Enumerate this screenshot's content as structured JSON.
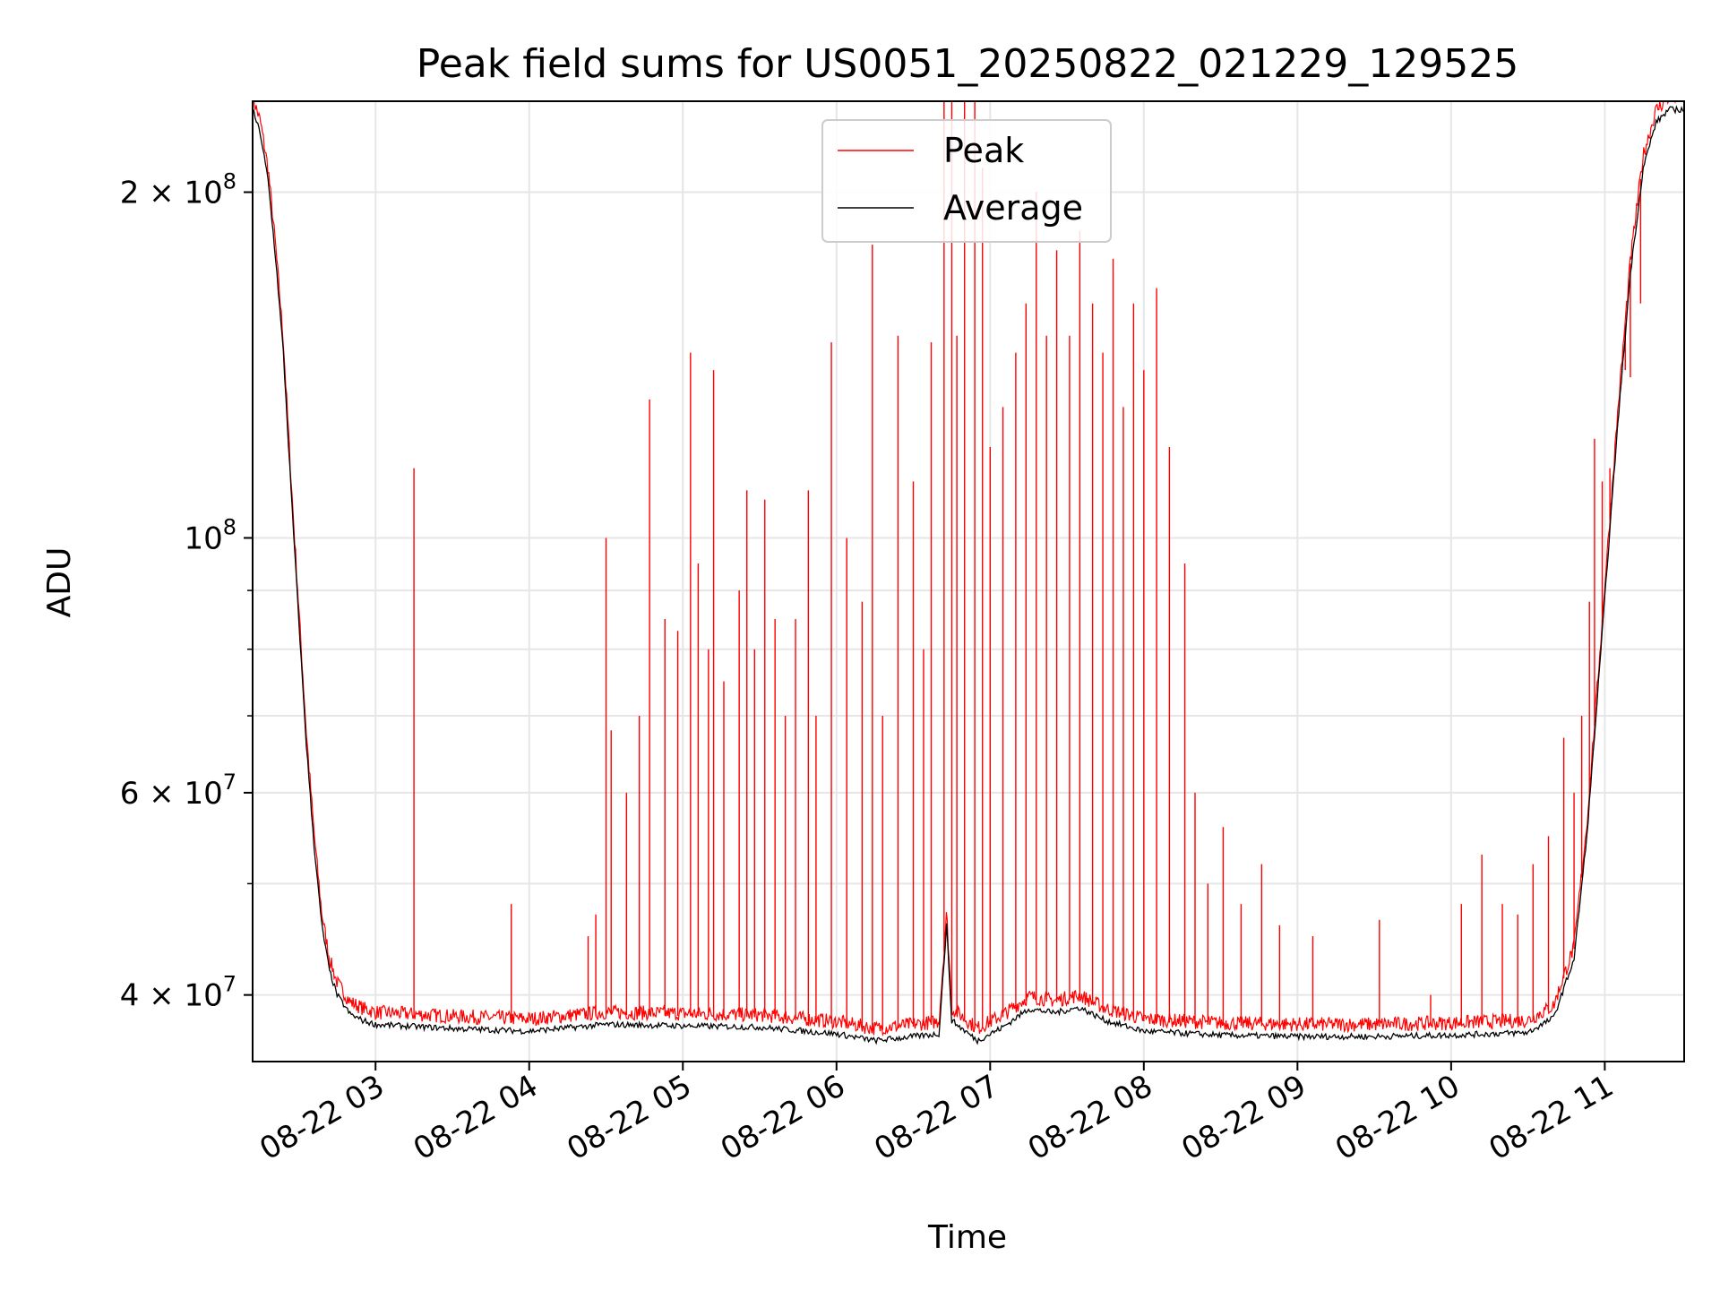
{
  "chart_data": {
    "type": "line",
    "title": "Peak field sums for US0051_20250822_021229_129525",
    "xlabel": "Time",
    "ylabel": "ADU",
    "y_scale": "log",
    "ylim": [
      35000000,
      240000000
    ],
    "xlim": [
      "2025-08-22 02:12",
      "2025-08-22 11:31"
    ],
    "grid": true,
    "legend_position": "top-center",
    "x_ticks": [
      {
        "t": "2025-08-22 03:00",
        "label": "08-22 03"
      },
      {
        "t": "2025-08-22 04:00",
        "label": "08-22 04"
      },
      {
        "t": "2025-08-22 05:00",
        "label": "08-22 05"
      },
      {
        "t": "2025-08-22 06:00",
        "label": "08-22 06"
      },
      {
        "t": "2025-08-22 07:00",
        "label": "08-22 07"
      },
      {
        "t": "2025-08-22 08:00",
        "label": "08-22 08"
      },
      {
        "t": "2025-08-22 09:00",
        "label": "08-22 09"
      },
      {
        "t": "2025-08-22 10:00",
        "label": "08-22 10"
      },
      {
        "t": "2025-08-22 11:00",
        "label": "08-22 11"
      }
    ],
    "y_ticks": [
      {
        "value": 40000000,
        "mant": "4",
        "exp": "7"
      },
      {
        "value": 60000000,
        "mant": "6",
        "exp": "7"
      },
      {
        "value": 100000000,
        "mant": "",
        "exp": "8"
      },
      {
        "value": 200000000,
        "mant": "2",
        "exp": "8"
      }
    ],
    "y_minor": [
      50000000,
      70000000,
      80000000,
      90000000
    ],
    "series": [
      {
        "name": "Average",
        "color": "#000000",
        "points": [
          [
            "2025-08-22 02:12",
            236000000
          ],
          [
            "2025-08-22 02:15",
            225000000
          ],
          [
            "2025-08-22 02:18",
            205000000
          ],
          [
            "2025-08-22 02:21",
            175000000
          ],
          [
            "2025-08-22 02:24",
            145000000
          ],
          [
            "2025-08-22 02:27",
            110000000
          ],
          [
            "2025-08-22 02:30",
            85000000
          ],
          [
            "2025-08-22 02:33",
            66000000
          ],
          [
            "2025-08-22 02:36",
            54000000
          ],
          [
            "2025-08-22 02:39",
            46000000
          ],
          [
            "2025-08-22 02:42",
            42000000
          ],
          [
            "2025-08-22 02:45",
            40000000
          ],
          [
            "2025-08-22 02:50",
            38500000
          ],
          [
            "2025-08-22 02:55",
            38000000
          ],
          [
            "2025-08-22 03:00",
            37700000
          ],
          [
            "2025-08-22 03:30",
            37400000
          ],
          [
            "2025-08-22 04:00",
            37200000
          ],
          [
            "2025-08-22 04:30",
            37700000
          ],
          [
            "2025-08-22 05:00",
            37600000
          ],
          [
            "2025-08-22 05:30",
            37500000
          ],
          [
            "2025-08-22 06:00",
            37000000
          ],
          [
            "2025-08-22 06:15",
            36500000
          ],
          [
            "2025-08-22 06:30",
            36800000
          ],
          [
            "2025-08-22 06:40",
            37000000
          ],
          [
            "2025-08-22 06:43",
            46000000
          ],
          [
            "2025-08-22 06:45",
            38000000
          ],
          [
            "2025-08-22 06:55",
            36500000
          ],
          [
            "2025-08-22 07:05",
            37500000
          ],
          [
            "2025-08-22 07:15",
            38900000
          ],
          [
            "2025-08-22 07:25",
            38600000
          ],
          [
            "2025-08-22 07:35",
            39000000
          ],
          [
            "2025-08-22 07:45",
            38000000
          ],
          [
            "2025-08-22 08:00",
            37200000
          ],
          [
            "2025-08-22 08:30",
            36900000
          ],
          [
            "2025-08-22 09:00",
            36800000
          ],
          [
            "2025-08-22 09:30",
            36800000
          ],
          [
            "2025-08-22 10:00",
            36900000
          ],
          [
            "2025-08-22 10:30",
            37100000
          ],
          [
            "2025-08-22 10:40",
            38200000
          ],
          [
            "2025-08-22 10:48",
            43000000
          ],
          [
            "2025-08-22 10:53",
            55000000
          ],
          [
            "2025-08-22 10:57",
            72000000
          ],
          [
            "2025-08-22 11:01",
            95000000
          ],
          [
            "2025-08-22 11:05",
            125000000
          ],
          [
            "2025-08-22 11:10",
            170000000
          ],
          [
            "2025-08-22 11:15",
            210000000
          ],
          [
            "2025-08-22 11:20",
            230000000
          ],
          [
            "2025-08-22 11:25",
            236000000
          ],
          [
            "2025-08-22 11:31",
            236000000
          ]
        ]
      },
      {
        "name": "Peak",
        "color": "#ff0000",
        "spikes": [
          [
            "2025-08-22 03:15",
            115000000
          ],
          [
            "2025-08-22 03:53",
            48000000
          ],
          [
            "2025-08-22 04:23",
            45000000
          ],
          [
            "2025-08-22 04:26",
            47000000
          ],
          [
            "2025-08-22 04:30",
            100000000
          ],
          [
            "2025-08-22 04:32",
            68000000
          ],
          [
            "2025-08-22 04:38",
            60000000
          ],
          [
            "2025-08-22 04:43",
            70000000
          ],
          [
            "2025-08-22 04:47",
            132000000
          ],
          [
            "2025-08-22 04:53",
            85000000
          ],
          [
            "2025-08-22 04:58",
            83000000
          ],
          [
            "2025-08-22 05:03",
            145000000
          ],
          [
            "2025-08-22 05:06",
            95000000
          ],
          [
            "2025-08-22 05:10",
            80000000
          ],
          [
            "2025-08-22 05:12",
            140000000
          ],
          [
            "2025-08-22 05:16",
            75000000
          ],
          [
            "2025-08-22 05:22",
            90000000
          ],
          [
            "2025-08-22 05:25",
            110000000
          ],
          [
            "2025-08-22 05:28",
            80000000
          ],
          [
            "2025-08-22 05:32",
            108000000
          ],
          [
            "2025-08-22 05:36",
            85000000
          ],
          [
            "2025-08-22 05:40",
            70000000
          ],
          [
            "2025-08-22 05:44",
            85000000
          ],
          [
            "2025-08-22 05:49",
            110000000
          ],
          [
            "2025-08-22 05:52",
            70000000
          ],
          [
            "2025-08-22 05:58",
            148000000
          ],
          [
            "2025-08-22 06:04",
            100000000
          ],
          [
            "2025-08-22 06:10",
            88000000
          ],
          [
            "2025-08-22 06:14",
            180000000
          ],
          [
            "2025-08-22 06:18",
            70000000
          ],
          [
            "2025-08-22 06:24",
            150000000
          ],
          [
            "2025-08-22 06:30",
            112000000
          ],
          [
            "2025-08-22 06:34",
            80000000
          ],
          [
            "2025-08-22 06:37",
            148000000
          ],
          [
            "2025-08-22 06:42",
            240000000
          ],
          [
            "2025-08-22 06:45",
            240000000
          ],
          [
            "2025-08-22 06:47",
            150000000
          ],
          [
            "2025-08-22 06:50",
            240000000
          ],
          [
            "2025-08-22 06:54",
            240000000
          ],
          [
            "2025-08-22 06:57",
            210000000
          ],
          [
            "2025-08-22 07:00",
            120000000
          ],
          [
            "2025-08-22 07:05",
            130000000
          ],
          [
            "2025-08-22 07:10",
            145000000
          ],
          [
            "2025-08-22 07:14",
            160000000
          ],
          [
            "2025-08-22 07:18",
            200000000
          ],
          [
            "2025-08-22 07:22",
            150000000
          ],
          [
            "2025-08-22 07:26",
            178000000
          ],
          [
            "2025-08-22 07:31",
            150000000
          ],
          [
            "2025-08-22 07:35",
            185000000
          ],
          [
            "2025-08-22 07:40",
            160000000
          ],
          [
            "2025-08-22 07:44",
            145000000
          ],
          [
            "2025-08-22 07:48",
            175000000
          ],
          [
            "2025-08-22 07:52",
            130000000
          ],
          [
            "2025-08-22 07:56",
            160000000
          ],
          [
            "2025-08-22 08:00",
            140000000
          ],
          [
            "2025-08-22 08:05",
            165000000
          ],
          [
            "2025-08-22 08:10",
            120000000
          ],
          [
            "2025-08-22 08:16",
            95000000
          ],
          [
            "2025-08-22 08:20",
            60000000
          ],
          [
            "2025-08-22 08:25",
            50000000
          ],
          [
            "2025-08-22 08:31",
            56000000
          ],
          [
            "2025-08-22 08:38",
            48000000
          ],
          [
            "2025-08-22 08:46",
            52000000
          ],
          [
            "2025-08-22 08:53",
            46000000
          ],
          [
            "2025-08-22 09:06",
            45000000
          ],
          [
            "2025-08-22 09:32",
            46500000
          ],
          [
            "2025-08-22 09:52",
            40000000
          ],
          [
            "2025-08-22 10:04",
            48000000
          ],
          [
            "2025-08-22 10:12",
            53000000
          ],
          [
            "2025-08-22 10:20",
            48000000
          ],
          [
            "2025-08-22 10:26",
            47000000
          ],
          [
            "2025-08-22 10:32",
            52000000
          ],
          [
            "2025-08-22 10:38",
            55000000
          ],
          [
            "2025-08-22 10:44",
            67000000
          ],
          [
            "2025-08-22 10:48",
            60000000
          ],
          [
            "2025-08-22 10:51",
            70000000
          ],
          [
            "2025-08-22 10:54",
            88000000
          ],
          [
            "2025-08-22 10:56",
            122000000
          ],
          [
            "2025-08-22 10:59",
            112000000
          ],
          [
            "2025-08-22 11:02",
            115000000
          ],
          [
            "2025-08-22 11:05",
            125000000
          ],
          [
            "2025-08-22 11:08",
            140000000
          ],
          [
            "2025-08-22 11:10",
            138000000
          ],
          [
            "2025-08-22 11:14",
            160000000
          ]
        ]
      }
    ]
  }
}
